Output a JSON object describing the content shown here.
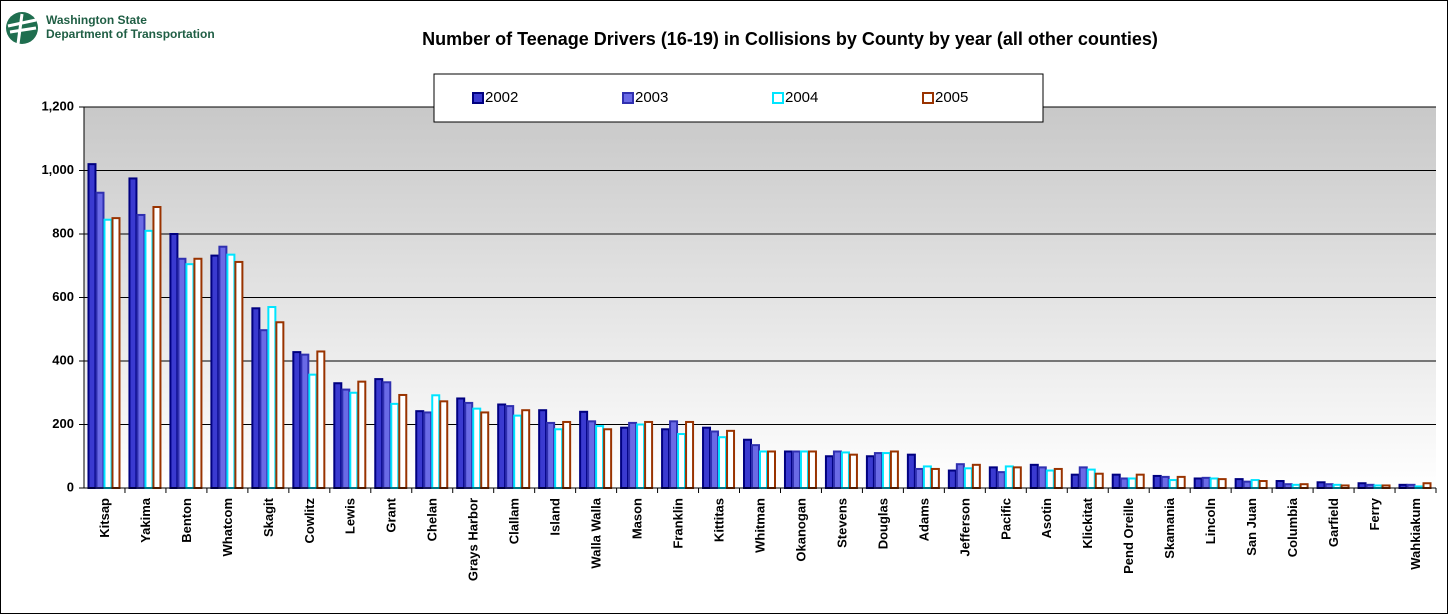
{
  "logo": {
    "line1": "Washington State",
    "line2": "Department of Transportation"
  },
  "chart_data": {
    "type": "bar",
    "title": "Number of Teenage Drivers (16-19) in Collisions by County by year (all other counties)",
    "categories": [
      "Kitsap",
      "Yakima",
      "Benton",
      "Whatcom",
      "Skagit",
      "Cowlitz",
      "Lewis",
      "Grant",
      "Chelan",
      "Grays Harbor",
      "Clallam",
      "Island",
      "Walla Walla",
      "Mason",
      "Franklin",
      "Kittitas",
      "Whitman",
      "Okanogan",
      "Stevens",
      "Douglas",
      "Adams",
      "Jefferson",
      "Pacific",
      "Asotin",
      "Klickitat",
      "Pend Oreille",
      "Skamania",
      "Lincoln",
      "San Juan",
      "Columbia",
      "Garfield",
      "Ferry",
      "Wahkiakum"
    ],
    "series": [
      {
        "name": "2002",
        "color": "#3a3ad0",
        "edgecolor": "#000080",
        "values": [
          1020,
          975,
          800,
          732,
          566,
          428,
          330,
          343,
          242,
          282,
          263,
          245,
          240,
          190,
          185,
          190,
          152,
          115,
          100,
          100,
          105,
          55,
          65,
          73,
          42,
          42,
          38,
          30,
          28,
          22,
          18,
          15,
          10
        ]
      },
      {
        "name": "2003",
        "color": "#6a6ae6",
        "edgecolor": "#3030b0",
        "values": [
          930,
          860,
          722,
          760,
          497,
          420,
          310,
          333,
          238,
          268,
          258,
          205,
          210,
          205,
          210,
          178,
          135,
          115,
          115,
          110,
          60,
          75,
          50,
          65,
          65,
          30,
          35,
          32,
          20,
          12,
          12,
          10,
          10
        ]
      },
      {
        "name": "2004",
        "color": "#ffffff",
        "edgecolor": "#00e5ff",
        "values": [
          845,
          810,
          705,
          735,
          570,
          357,
          300,
          265,
          292,
          250,
          228,
          185,
          195,
          200,
          170,
          160,
          115,
          115,
          112,
          110,
          68,
          62,
          68,
          55,
          58,
          30,
          25,
          30,
          25,
          10,
          10,
          8,
          5
        ]
      },
      {
        "name": "2005",
        "color": "#ffffff",
        "edgecolor": "#993300",
        "values": [
          850,
          885,
          722,
          712,
          522,
          430,
          335,
          293,
          273,
          238,
          245,
          208,
          185,
          208,
          208,
          180,
          115,
          115,
          105,
          115,
          60,
          73,
          65,
          60,
          45,
          42,
          35,
          28,
          22,
          12,
          8,
          8,
          15
        ]
      }
    ],
    "ylim": [
      0,
      1200
    ],
    "yticks": [
      0,
      200,
      400,
      600,
      800,
      {
        "value": 1000,
        "label": "1,000"
      },
      {
        "value": 1200,
        "label": "1,200"
      }
    ],
    "grid": true
  }
}
